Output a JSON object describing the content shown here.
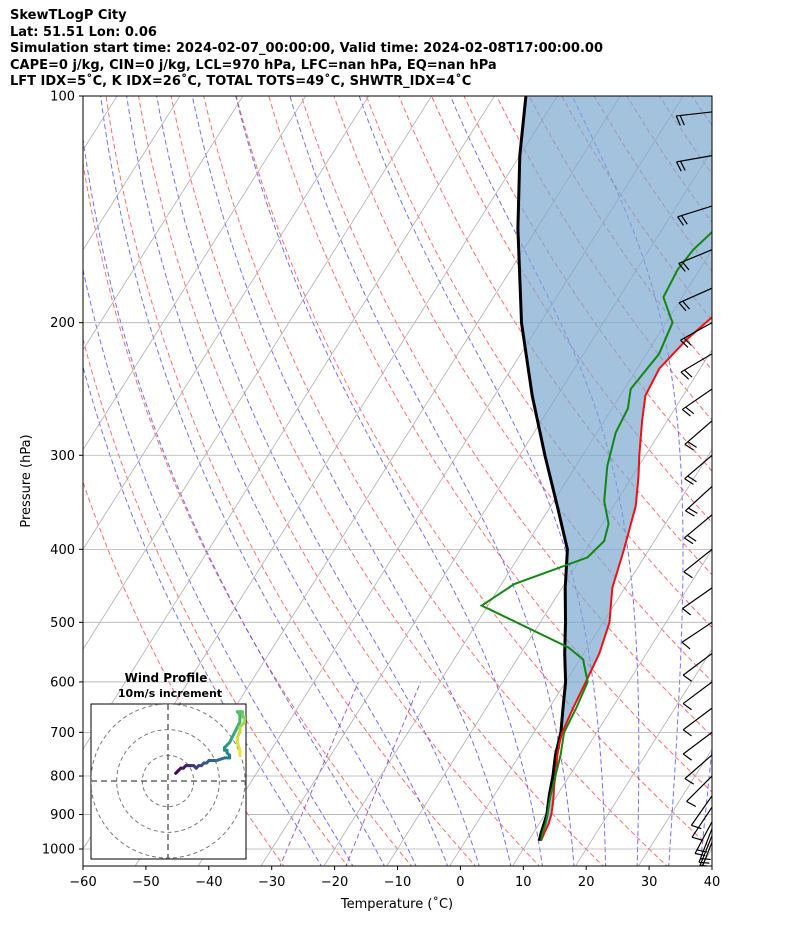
{
  "header": {
    "title": "SkewTLogP City",
    "location": "Lat: 51.51   Lon: 0.06",
    "times": "Simulation start time: 2024-02-07_00:00:00, Valid time: 2024-02-08T17:00:00.00",
    "params": "CAPE=0 j/kg, CIN=0 j/kg, LCL=970 hPa, LFC=nan hPa, EQ=nan hPa",
    "indices": "LFT IDX=5˚C, K IDX=26˚C, TOTAL TOTS=49˚C, SHWTR_IDX=4˚C"
  },
  "chart_data": {
    "type": "line",
    "xlabel": "Temperature (˚C)",
    "ylabel": "Pressure (hPa)",
    "xlim": [
      -60,
      40
    ],
    "ylim": [
      1050,
      100
    ],
    "x_ticks": [
      "−60",
      "−50",
      "−40",
      "−30",
      "−20",
      "−10",
      "0",
      "10",
      "20",
      "30",
      "40"
    ],
    "y_ticks": [
      "1000",
      "900",
      "800",
      "700",
      "600",
      "500",
      "400",
      "300",
      "200",
      "100"
    ],
    "y_tick_values": [
      1000,
      900,
      800,
      700,
      600,
      500,
      400,
      300,
      200,
      100
    ],
    "log_pressure_axis": true,
    "grid": true,
    "colors": {
      "temperature": "#ee1111",
      "dewpoint": "#118811",
      "parcel": "#000000",
      "cape_fill": "#7aa8d0",
      "dry_adiabat": "#ff5555",
      "moist_adiabat": "#3333ff",
      "mixing": "#8833cc"
    },
    "series": [
      {
        "key": "temperature",
        "points": [
          [
            12,
            975
          ],
          [
            11.7,
            950
          ],
          [
            11.5,
            925
          ],
          [
            11,
            900
          ],
          [
            10.3,
            875
          ],
          [
            9.5,
            850
          ],
          [
            8.6,
            825
          ],
          [
            7.8,
            800
          ],
          [
            6.9,
            775
          ],
          [
            6,
            750
          ],
          [
            5.2,
            725
          ],
          [
            4.5,
            700
          ],
          [
            3.8,
            650
          ],
          [
            3.2,
            600
          ],
          [
            2.5,
            550
          ],
          [
            1,
            500
          ],
          [
            -2,
            450
          ],
          [
            -4,
            400
          ],
          [
            -6.5,
            350
          ],
          [
            -9,
            320
          ],
          [
            -11,
            300
          ],
          [
            -14,
            270
          ],
          [
            -16,
            250
          ],
          [
            -16.5,
            230
          ],
          [
            -15,
            210
          ],
          [
            -13,
            195
          ],
          [
            -10,
            185
          ],
          [
            -7,
            170
          ],
          [
            -4,
            155
          ],
          [
            -1,
            140
          ],
          [
            2,
            130
          ],
          [
            4,
            120
          ],
          [
            6,
            110
          ],
          [
            7,
            105
          ],
          [
            8,
            100
          ]
        ]
      },
      {
        "key": "dewpoint",
        "points": [
          [
            12,
            975
          ],
          [
            11.4,
            950
          ],
          [
            11,
            925
          ],
          [
            10.4,
            900
          ],
          [
            9.7,
            875
          ],
          [
            9,
            850
          ],
          [
            7.8,
            800
          ],
          [
            6.5,
            750
          ],
          [
            4.8,
            700
          ],
          [
            4.3,
            650
          ],
          [
            3.5,
            600
          ],
          [
            0.5,
            560
          ],
          [
            -3,
            540
          ],
          [
            -21,
            475
          ],
          [
            -18,
            445
          ],
          [
            -9,
            410
          ],
          [
            -8,
            390
          ],
          [
            -9,
            370
          ],
          [
            -12,
            345
          ],
          [
            -15,
            310
          ],
          [
            -17,
            280
          ],
          [
            -17.5,
            260
          ],
          [
            -19,
            245
          ],
          [
            -18,
            220
          ],
          [
            -19,
            200
          ],
          [
            -23,
            185
          ],
          [
            -23.5,
            170
          ],
          [
            -23,
            160
          ],
          [
            -20,
            140
          ],
          [
            -16,
            125
          ],
          [
            -12,
            110
          ],
          [
            -10,
            100
          ]
        ]
      },
      {
        "key": "parcel",
        "points": [
          [
            11.7,
            975
          ],
          [
            11.2,
            950
          ],
          [
            10.3,
            900
          ],
          [
            8.8,
            850
          ],
          [
            7.4,
            800
          ],
          [
            5.7,
            750
          ],
          [
            4.3,
            700
          ],
          [
            2.2,
            650
          ],
          [
            0,
            600
          ],
          [
            -3,
            550
          ],
          [
            -6,
            500
          ],
          [
            -9.5,
            450
          ],
          [
            -13,
            400
          ],
          [
            -19,
            350
          ],
          [
            -26,
            300
          ],
          [
            -34,
            250
          ],
          [
            -43,
            200
          ],
          [
            -53,
            150
          ],
          [
            -60,
            120
          ],
          [
            -65,
            100
          ]
        ]
      }
    ],
    "wind_barbs": [
      {
        "p": 980,
        "u": -10,
        "v": -25
      },
      {
        "p": 960,
        "u": -8,
        "v": -20
      },
      {
        "p": 940,
        "u": -7,
        "v": -18
      },
      {
        "p": 920,
        "u": -8,
        "v": -15
      },
      {
        "p": 880,
        "u": -8,
        "v": -12
      },
      {
        "p": 850,
        "u": -7,
        "v": -10
      },
      {
        "p": 800,
        "u": -8,
        "v": -8
      },
      {
        "p": 750,
        "u": -8,
        "v": -7
      },
      {
        "p": 700,
        "u": -8,
        "v": -6
      },
      {
        "p": 650,
        "u": -8,
        "v": -6
      },
      {
        "p": 600,
        "u": -8,
        "v": -6
      },
      {
        "p": 550,
        "u": -8,
        "v": -6
      },
      {
        "p": 500,
        "u": -9,
        "v": -6
      },
      {
        "p": 450,
        "u": -10,
        "v": -7
      },
      {
        "p": 400,
        "u": -10,
        "v": -8
      },
      {
        "p": 360,
        "u": -12,
        "v": -10
      },
      {
        "p": 330,
        "u": -12,
        "v": -11
      },
      {
        "p": 300,
        "u": -14,
        "v": -12
      },
      {
        "p": 270,
        "u": -15,
        "v": -13
      },
      {
        "p": 245,
        "u": -16,
        "v": -11
      },
      {
        "p": 220,
        "u": -17,
        "v": -10
      },
      {
        "p": 200,
        "u": -18,
        "v": -10
      },
      {
        "p": 180,
        "u": -18,
        "v": -8
      },
      {
        "p": 160,
        "u": -17,
        "v": -7
      },
      {
        "p": 140,
        "u": -16,
        "v": -5
      },
      {
        "p": 120,
        "u": -17,
        "v": -3
      },
      {
        "p": 105,
        "u": -18,
        "v": -2
      }
    ],
    "hodograph": {
      "title": "Wind Profile",
      "subtitle": "10m/s increment",
      "rings_ms": [
        10,
        20,
        30
      ],
      "range_ms": 30,
      "points_ms": [
        [
          3,
          3
        ],
        [
          4,
          4
        ],
        [
          5,
          5
        ],
        [
          6,
          5
        ],
        [
          7,
          6
        ],
        [
          8,
          6
        ],
        [
          9,
          6
        ],
        [
          10,
          6
        ],
        [
          11,
          5
        ],
        [
          12,
          6
        ],
        [
          13,
          6
        ],
        [
          14,
          7
        ],
        [
          15,
          7
        ],
        [
          16,
          8
        ],
        [
          17,
          8
        ],
        [
          18,
          8
        ],
        [
          19,
          8
        ],
        [
          22,
          9
        ],
        [
          24,
          9
        ],
        [
          24,
          10
        ],
        [
          23,
          11
        ],
        [
          23,
          12
        ],
        [
          22,
          12
        ],
        [
          22,
          13
        ],
        [
          23,
          14
        ],
        [
          24,
          15
        ],
        [
          25,
          17
        ],
        [
          26,
          19
        ],
        [
          27,
          21
        ],
        [
          28,
          23
        ],
        [
          28,
          26
        ],
        [
          27,
          27
        ],
        [
          28,
          27
        ],
        [
          29,
          27
        ],
        [
          29,
          26
        ],
        [
          29,
          25
        ],
        [
          30,
          25
        ],
        [
          30,
          23
        ],
        [
          29,
          22
        ],
        [
          28,
          21
        ],
        [
          28,
          19
        ],
        [
          27,
          17
        ],
        [
          27,
          15
        ],
        [
          28,
          12
        ],
        [
          28,
          10
        ]
      ]
    }
  }
}
